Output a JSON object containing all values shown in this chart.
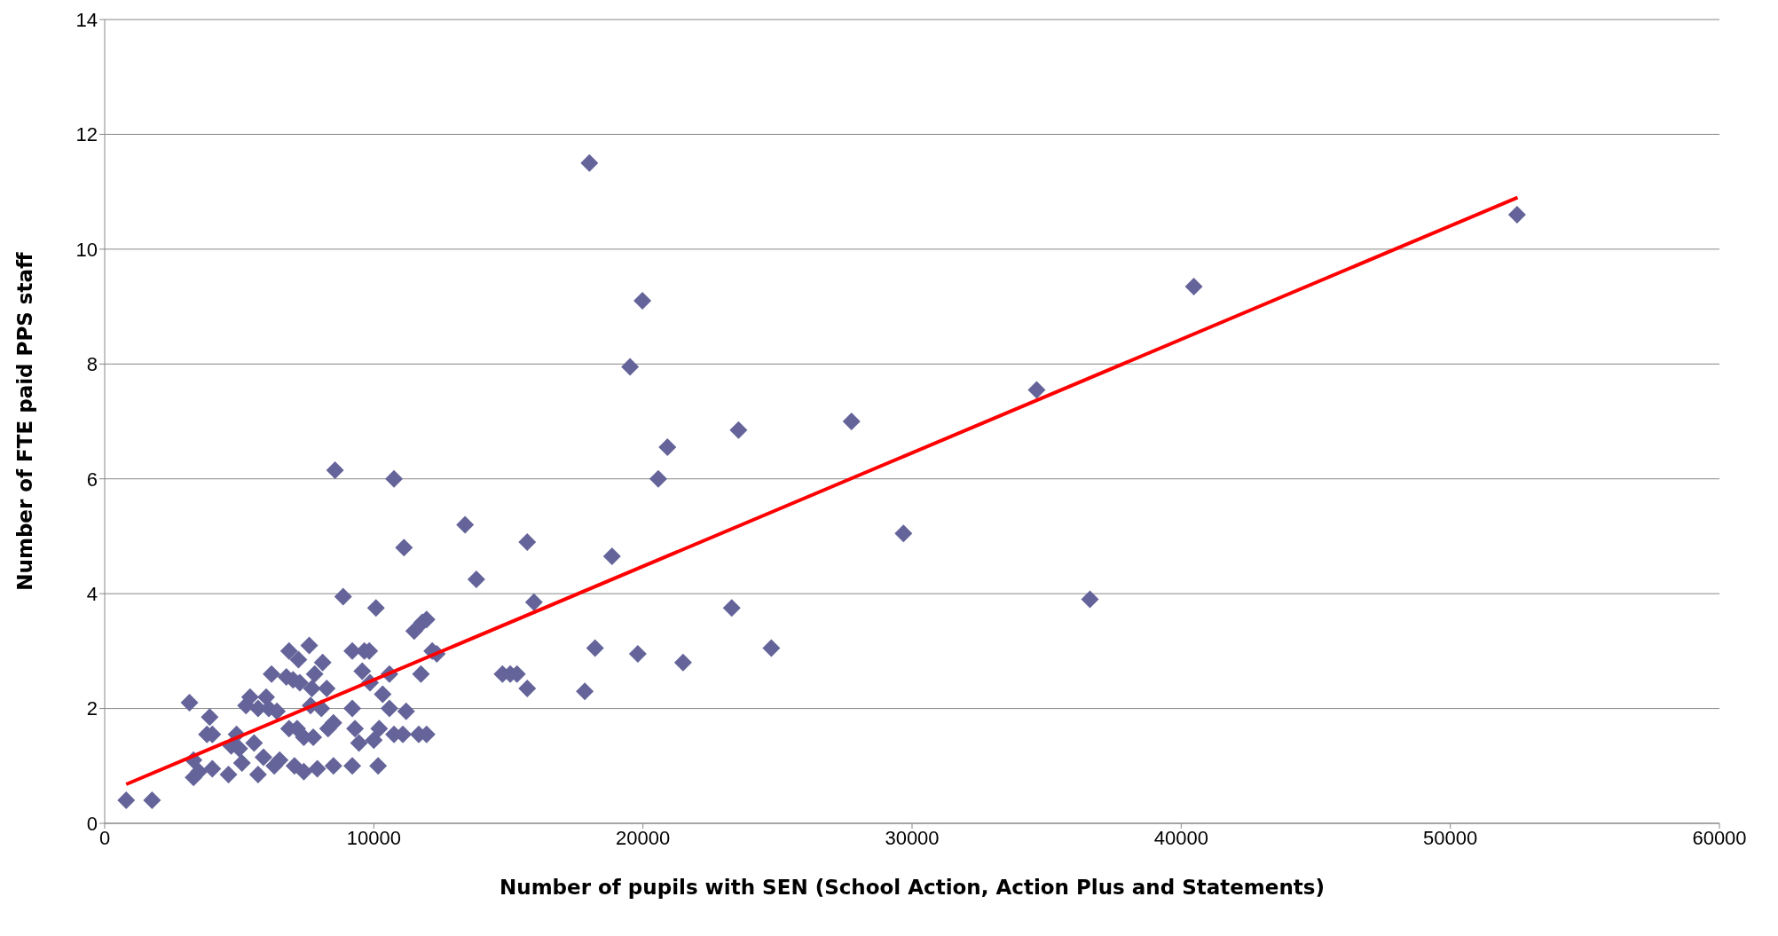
{
  "chart_data": {
    "type": "scatter",
    "xlabel": "Number of pupils with SEN (School Action, Action Plus and Statements)",
    "ylabel": "Number of FTE paid PPS staff",
    "xlim": [
      0,
      60000
    ],
    "xticks": [
      0,
      10000,
      20000,
      30000,
      40000,
      50000,
      60000
    ],
    "ylim": [
      0,
      14
    ],
    "yticks": [
      0,
      2,
      4,
      6,
      8,
      10,
      12,
      14
    ],
    "grid": "y",
    "legend": false,
    "marker": "diamond",
    "series": [
      {
        "color": "#64649a",
        "x": [
          800,
          1760,
          3150,
          3300,
          3300,
          3500,
          3900,
          3800,
          4000,
          4000,
          4600,
          4700,
          4900,
          5000,
          5100,
          5250,
          5400,
          5550,
          5700,
          5700,
          5900,
          6000,
          6100,
          6200,
          6300,
          6400,
          6500,
          6750,
          6850,
          6850,
          7000,
          7050,
          7150,
          7200,
          7250,
          7400,
          7400,
          7600,
          7650,
          7700,
          7750,
          7800,
          7900,
          8050,
          8100,
          8250,
          8300,
          8500,
          8500,
          8560,
          8860,
          9200,
          9200,
          9200,
          9300,
          9450,
          9570,
          9650,
          9830,
          9860,
          10000,
          10080,
          10160,
          10200,
          10330,
          10580,
          10580,
          10750,
          10750,
          11080,
          11120,
          11200,
          11500,
          11670,
          11750,
          11800,
          11960,
          11960,
          12170,
          12340,
          13390,
          13810,
          14780,
          15070,
          15320,
          15700,
          15700,
          15950,
          17840,
          18010,
          18220,
          18850,
          19520,
          19810,
          19980,
          20570,
          20910,
          21490,
          23300,
          23550,
          24770,
          27750,
          29680,
          34630,
          36610,
          40470,
          52480
        ],
        "values": [
          0.4,
          0.4,
          2.1,
          1.1,
          0.8,
          0.9,
          1.85,
          1.55,
          1.55,
          0.95,
          0.85,
          1.35,
          1.55,
          1.3,
          1.05,
          2.05,
          2.2,
          1.4,
          2.0,
          0.85,
          1.15,
          2.2,
          2.0,
          2.6,
          1.0,
          1.95,
          1.1,
          2.55,
          3.0,
          1.65,
          2.5,
          1.0,
          1.65,
          2.85,
          2.45,
          1.5,
          0.9,
          3.1,
          2.05,
          2.35,
          1.5,
          2.6,
          0.95,
          2.0,
          2.8,
          2.35,
          1.65,
          1.75,
          1.0,
          6.15,
          3.95,
          3.0,
          2.0,
          1.0,
          1.65,
          1.4,
          2.65,
          3.0,
          3.0,
          2.45,
          1.45,
          3.75,
          1.0,
          1.65,
          2.25,
          2.0,
          2.6,
          6.0,
          1.55,
          1.55,
          4.8,
          1.95,
          3.35,
          1.55,
          2.6,
          3.5,
          3.55,
          1.55,
          3.0,
          2.95,
          5.2,
          4.25,
          2.6,
          2.6,
          2.6,
          2.35,
          4.9,
          3.85,
          2.3,
          11.5,
          3.05,
          4.65,
          7.95,
          2.95,
          9.1,
          6.0,
          6.55,
          2.8,
          3.75,
          6.85,
          3.05,
          7.0,
          5.05,
          7.55,
          3.9,
          9.35,
          10.6
        ]
      },
      {
        "type": "line",
        "color": "#ff0000",
        "marker": "none",
        "line_style": "solid",
        "x": [
          800,
          52500
        ],
        "values": [
          0.68,
          10.9
        ]
      }
    ]
  }
}
